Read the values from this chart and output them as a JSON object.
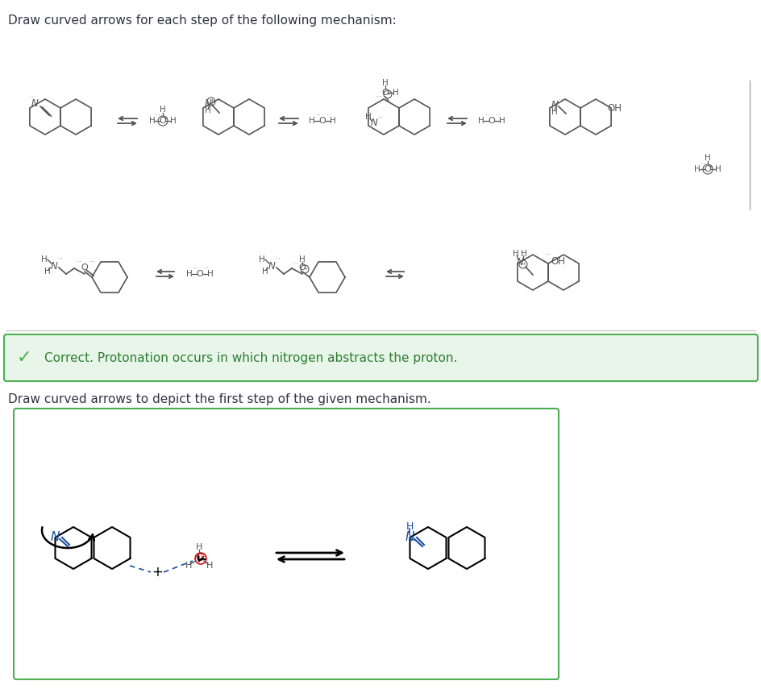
{
  "title_top": "Draw curved arrows for each step of the following mechanism:",
  "feedback_text": "Correct. Protonation occurs in which nitrogen abstracts the proton.",
  "title_bottom": "Draw curved arrows to depict the first step of the given mechanism.",
  "bg_color": "#ffffff",
  "feedback_bg": "#e8f5e9",
  "feedback_border": "#4caf50",
  "feedback_text_color": "#2e7d32",
  "check_color": "#4caf50",
  "box_border_color": "#4caf50",
  "font_size_title": 11,
  "figure_width": 9.45,
  "figure_height": 8.55
}
